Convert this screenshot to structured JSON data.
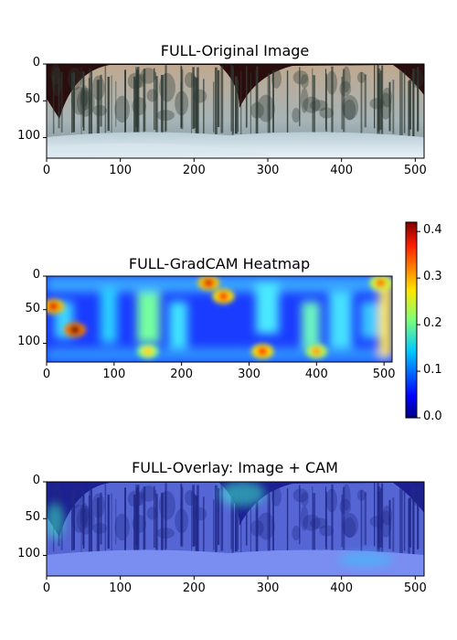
{
  "chart_data": [
    {
      "type": "image",
      "title": "FULL-Original Image",
      "xlim": [
        0,
        512
      ],
      "ylim": [
        128,
        0
      ],
      "xticks": [
        0,
        100,
        200,
        300,
        400,
        500
      ],
      "yticks": [
        0,
        50,
        100
      ],
      "content": "panoramic snowy pine forest photo"
    },
    {
      "type": "heatmap",
      "title": "FULL-GradCAM Heatmap",
      "xlim": [
        0,
        512
      ],
      "ylim": [
        128,
        0
      ],
      "xticks": [
        0,
        100,
        200,
        300,
        400,
        500
      ],
      "yticks": [
        0,
        50,
        100
      ],
      "colormap": "jet",
      "colorbar": {
        "range": [
          0.0,
          0.42
        ],
        "ticks": [
          "0.0",
          "0.1",
          "0.2",
          "0.3",
          "0.4"
        ],
        "tick_values": [
          0.0,
          0.1,
          0.2,
          0.3,
          0.4
        ]
      },
      "hotspots": [
        {
          "x": 10,
          "y": 45,
          "value": 0.38
        },
        {
          "x": 42,
          "y": 80,
          "value": 0.42
        },
        {
          "x": 240,
          "y": 10,
          "value": 0.38
        },
        {
          "x": 262,
          "y": 30,
          "value": 0.36
        },
        {
          "x": 320,
          "y": 112,
          "value": 0.36
        },
        {
          "x": 400,
          "y": 112,
          "value": 0.3
        },
        {
          "x": 150,
          "y": 112,
          "value": 0.28
        },
        {
          "x": 495,
          "y": 10,
          "value": 0.32
        }
      ]
    },
    {
      "type": "image",
      "title": "FULL-Overlay: Image + CAM",
      "xlim": [
        0,
        512
      ],
      "ylim": [
        128,
        0
      ],
      "xticks": [
        0,
        100,
        200,
        300,
        400,
        500
      ],
      "yticks": [
        0,
        50,
        100
      ],
      "content": "forest photo blended with jet heatmap"
    }
  ]
}
